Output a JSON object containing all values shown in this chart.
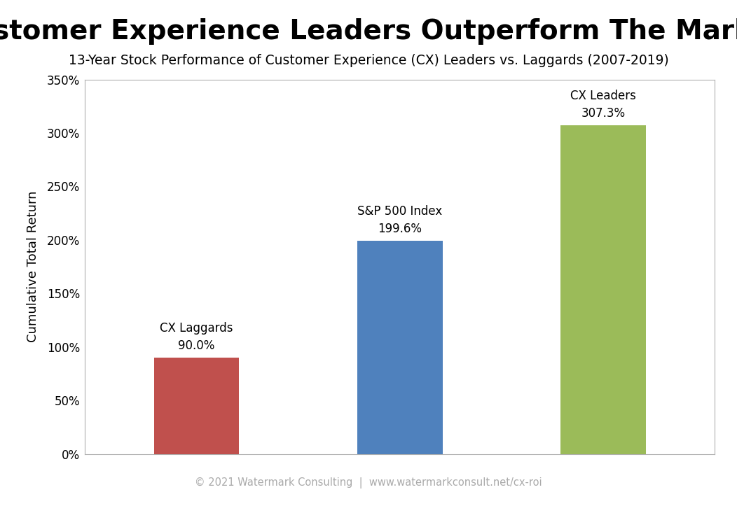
{
  "title": "Customer Experience Leaders Outperform The Market",
  "subtitle": "13-Year Stock Performance of Customer Experience (CX) Leaders vs. Laggards (2007-2019)",
  "categories": [
    "CX Laggards",
    "S&P 500 Index",
    "CX Leaders"
  ],
  "values": [
    90.0,
    199.6,
    307.3
  ],
  "bar_colors": [
    "#c0504d",
    "#4f81bd",
    "#9bbb59"
  ],
  "ylabel": "Cumulative Total Return",
  "ylim": [
    0,
    350
  ],
  "yticks": [
    0,
    50,
    100,
    150,
    200,
    250,
    300,
    350
  ],
  "bar_label_lines": [
    [
      "CX Laggards",
      "90.0%"
    ],
    [
      "S&P 500 Index",
      "199.6%"
    ],
    [
      "CX Leaders",
      "307.3%"
    ]
  ],
  "footer": "© 2021 Watermark Consulting  |  www.watermarkconsult.net/cx-roi",
  "background_color": "#ffffff",
  "plot_bg_color": "#ffffff",
  "title_fontsize": 28,
  "subtitle_fontsize": 13.5,
  "ylabel_fontsize": 13,
  "tick_fontsize": 12,
  "label_fontsize": 12,
  "footer_fontsize": 10.5,
  "bar_width": 0.42,
  "xlim": [
    -0.55,
    2.55
  ]
}
